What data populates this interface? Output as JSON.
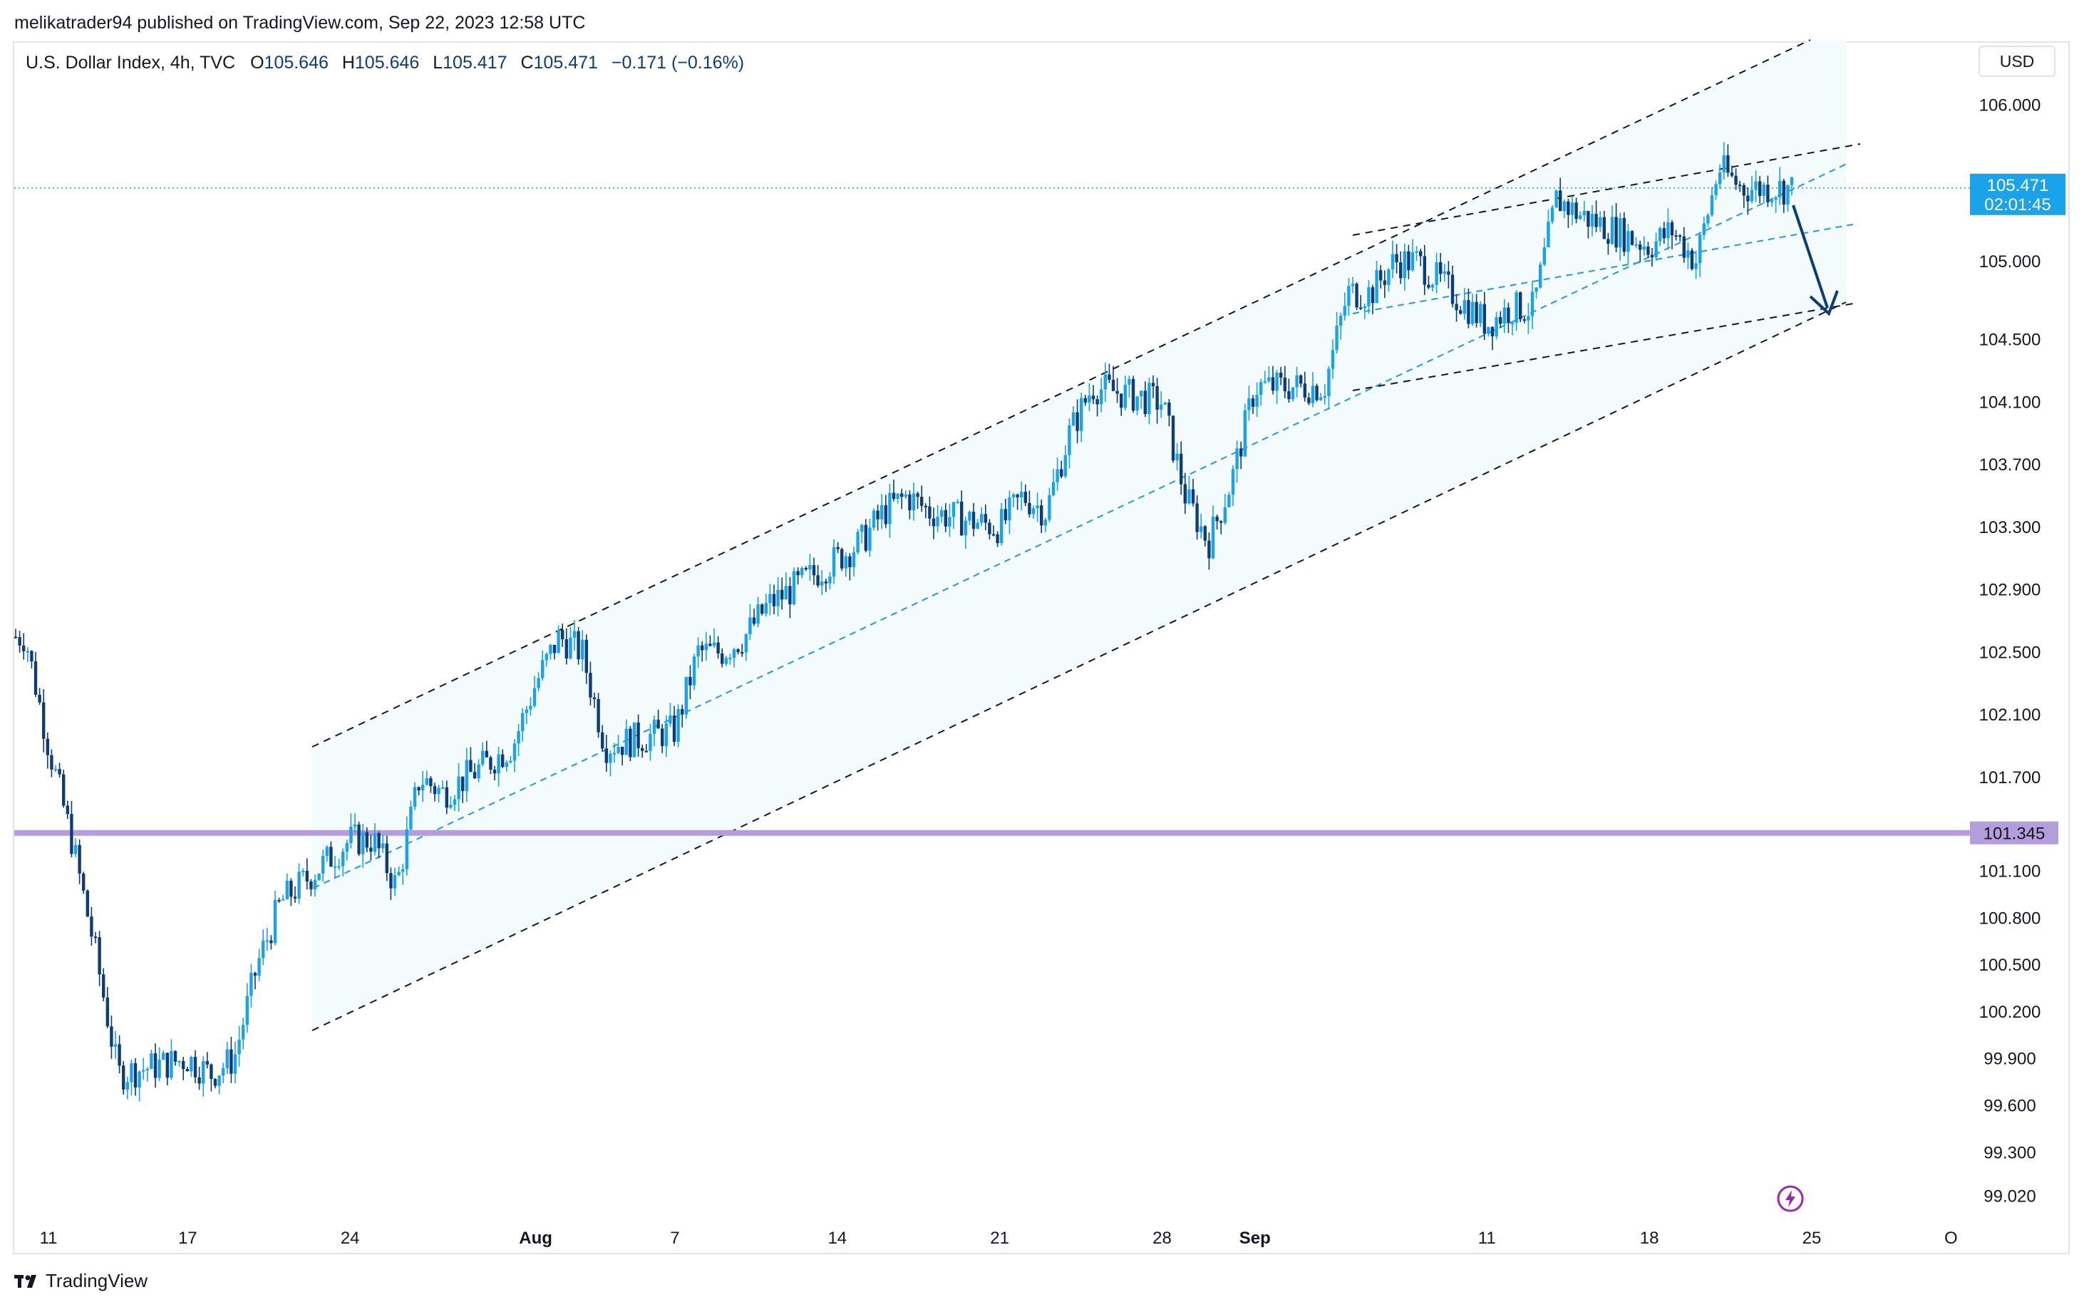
{
  "header": {
    "published_by": "melikatrader94 published on TradingView.com, Sep 22, 2023 12:58 UTC"
  },
  "legend": {
    "symbol": "U.S. Dollar Index, 4h, TVC",
    "open_label": "O",
    "open": "105.646",
    "high_label": "H",
    "high": "105.646",
    "low_label": "L",
    "low": "105.417",
    "close_label": "C",
    "close": "105.471",
    "change": "−0.171 (−0.16%)"
  },
  "currency": "USD",
  "brand": {
    "name": "TradingView"
  },
  "colors": {
    "candle": "#0d3c78",
    "candle_up": "#1aa3e8",
    "channel_fill": "#f3fbfd",
    "channel_line": "#131722",
    "midline": "#2196f3",
    "horizontal_level": "#b39ddb",
    "price_label": "#1aa3e8",
    "arrow": "#0d3c78"
  },
  "chart_data": {
    "type": "candlestick",
    "interval": "4h",
    "y_range": [
      98.9,
      106.4
    ],
    "price_ticks": [
      "106.000",
      "105.000",
      "104.500",
      "104.100",
      "103.700",
      "103.300",
      "102.900",
      "102.500",
      "102.100",
      "101.700",
      "101.100",
      "100.800",
      "100.500",
      "100.200",
      "99.900",
      "99.600",
      "99.300",
      "99.020"
    ],
    "date_ticks": [
      {
        "label": "11",
        "date": "2023-07-11",
        "bold": false
      },
      {
        "label": "17",
        "date": "2023-07-17",
        "bold": false
      },
      {
        "label": "24",
        "date": "2023-07-24",
        "bold": false
      },
      {
        "label": "Aug",
        "date": "2023-08-01",
        "bold": true
      },
      {
        "label": "7",
        "date": "2023-08-07",
        "bold": false
      },
      {
        "label": "14",
        "date": "2023-08-14",
        "bold": false
      },
      {
        "label": "21",
        "date": "2023-08-21",
        "bold": false
      },
      {
        "label": "28",
        "date": "2023-08-28",
        "bold": false
      },
      {
        "label": "Sep",
        "date": "2023-09-01",
        "bold": true
      },
      {
        "label": "11",
        "date": "2023-09-11",
        "bold": false
      },
      {
        "label": "18",
        "date": "2023-09-18",
        "bold": false
      },
      {
        "label": "25",
        "date": "2023-09-25",
        "bold": false
      },
      {
        "label": "O",
        "date": "2023-10-01",
        "bold": false
      }
    ],
    "last_price": {
      "value": "105.471",
      "countdown": "02:01:45"
    },
    "horizontal_level": {
      "value": "101.345"
    },
    "close_path": [
      {
        "date": "2023-07-10",
        "close": 102.6
      },
      {
        "date": "2023-07-11",
        "close": 101.9
      },
      {
        "date": "2023-07-12",
        "close": 101.3
      },
      {
        "date": "2023-07-13",
        "close": 100.6
      },
      {
        "date": "2023-07-14",
        "close": 99.8
      },
      {
        "date": "2023-07-17",
        "close": 99.9
      },
      {
        "date": "2023-07-18",
        "close": 99.8
      },
      {
        "date": "2023-07-19",
        "close": 99.9
      },
      {
        "date": "2023-07-20",
        "close": 100.5
      },
      {
        "date": "2023-07-21",
        "close": 100.9
      },
      {
        "date": "2023-07-24",
        "close": 101.3
      },
      {
        "date": "2023-07-25",
        "close": 101.3
      },
      {
        "date": "2023-07-26",
        "close": 101.0
      },
      {
        "date": "2023-07-27",
        "close": 101.7
      },
      {
        "date": "2023-07-28",
        "close": 101.6
      },
      {
        "date": "2023-07-31",
        "close": 101.9
      },
      {
        "date": "2023-08-01",
        "close": 102.3
      },
      {
        "date": "2023-08-02",
        "close": 102.6
      },
      {
        "date": "2023-08-03",
        "close": 102.5
      },
      {
        "date": "2023-08-04",
        "close": 101.9
      },
      {
        "date": "2023-08-07",
        "close": 102.0
      },
      {
        "date": "2023-08-08",
        "close": 102.5
      },
      {
        "date": "2023-08-09",
        "close": 102.5
      },
      {
        "date": "2023-08-10",
        "close": 102.6
      },
      {
        "date": "2023-08-11",
        "close": 102.8
      },
      {
        "date": "2023-08-14",
        "close": 103.1
      },
      {
        "date": "2023-08-15",
        "close": 103.2
      },
      {
        "date": "2023-08-16",
        "close": 103.4
      },
      {
        "date": "2023-08-17",
        "close": 103.5
      },
      {
        "date": "2023-08-18",
        "close": 103.4
      },
      {
        "date": "2023-08-21",
        "close": 103.3
      },
      {
        "date": "2023-08-22",
        "close": 103.5
      },
      {
        "date": "2023-08-23",
        "close": 103.4
      },
      {
        "date": "2023-08-24",
        "close": 103.9
      },
      {
        "date": "2023-08-25",
        "close": 104.2
      },
      {
        "date": "2023-08-28",
        "close": 104.1
      },
      {
        "date": "2023-08-29",
        "close": 103.5
      },
      {
        "date": "2023-08-30",
        "close": 103.2
      },
      {
        "date": "2023-08-31",
        "close": 103.6
      },
      {
        "date": "2023-09-01",
        "close": 104.2
      },
      {
        "date": "2023-09-04",
        "close": 104.2
      },
      {
        "date": "2023-09-05",
        "close": 104.8
      },
      {
        "date": "2023-09-06",
        "close": 104.8
      },
      {
        "date": "2023-09-07",
        "close": 105.0
      },
      {
        "date": "2023-09-08",
        "close": 105.0
      },
      {
        "date": "2023-09-11",
        "close": 104.6
      },
      {
        "date": "2023-09-12",
        "close": 104.7
      },
      {
        "date": "2023-09-13",
        "close": 104.7
      },
      {
        "date": "2023-09-14",
        "close": 105.4
      },
      {
        "date": "2023-09-15",
        "close": 105.3
      },
      {
        "date": "2023-09-18",
        "close": 105.1
      },
      {
        "date": "2023-09-19",
        "close": 105.2
      },
      {
        "date": "2023-09-20",
        "close": 105.0
      },
      {
        "date": "2023-09-21",
        "close": 105.6
      },
      {
        "date": "2023-09-22",
        "close": 105.47
      }
    ]
  }
}
